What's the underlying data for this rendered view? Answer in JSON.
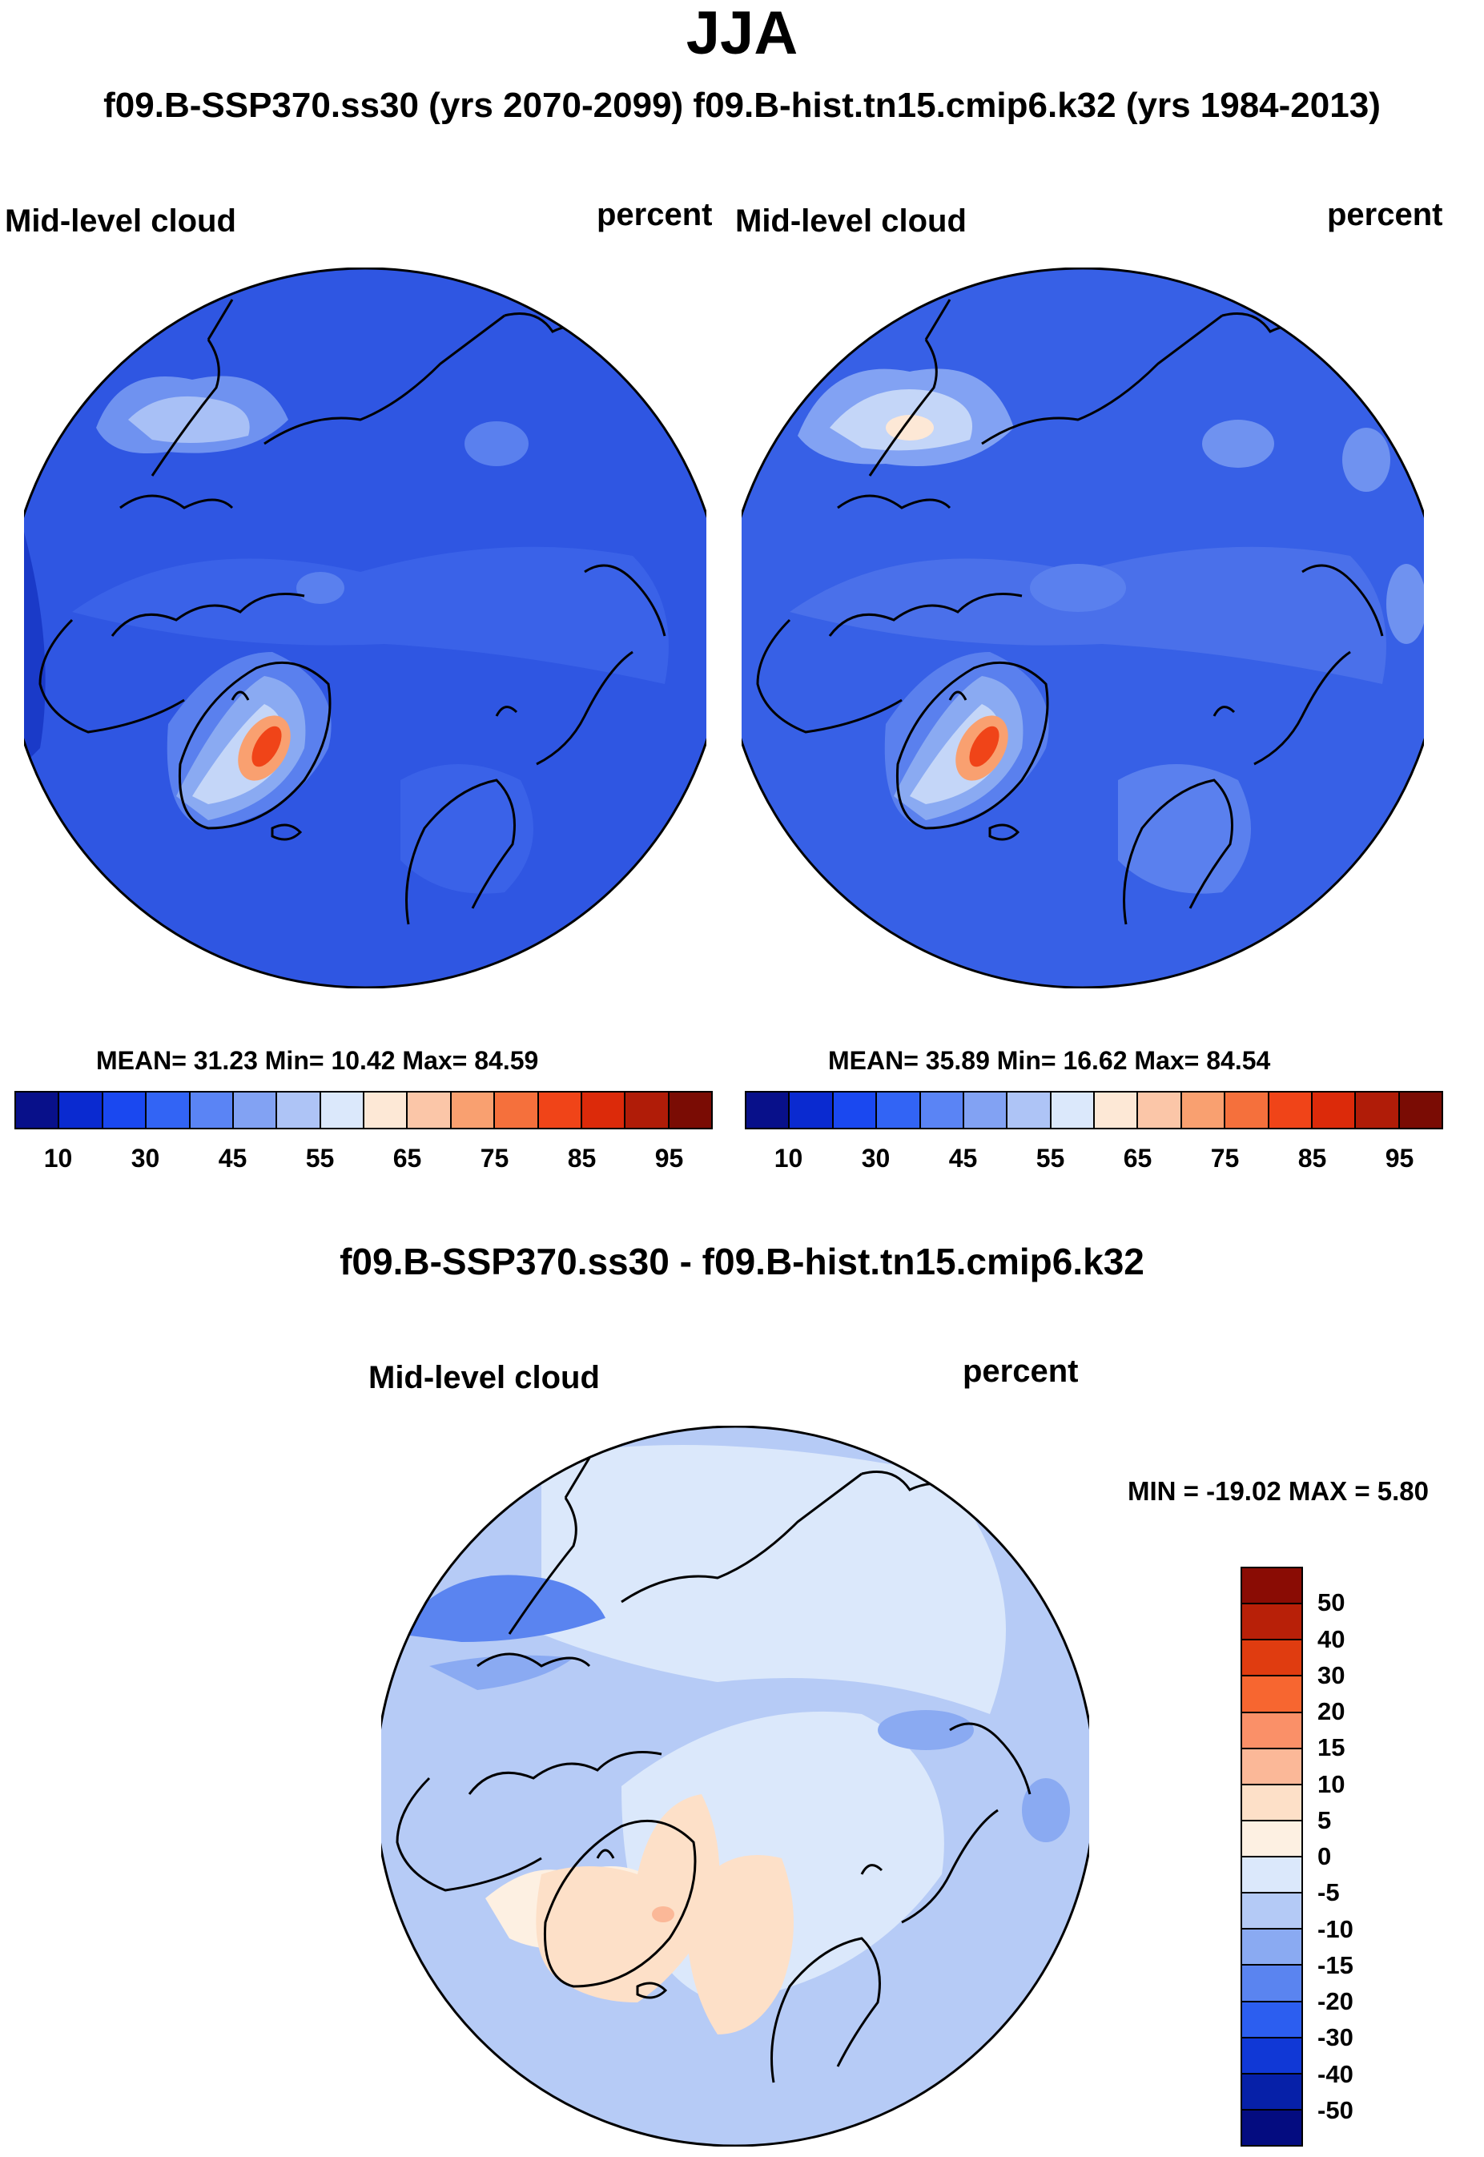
{
  "title": "JJA",
  "subtitle": "f09.B-SSP370.ss30 (yrs 2070-2099)  f09.B-hist.tn15.cmip6.k32 (yrs 1984-2013)",
  "panels": [
    {
      "label": "Mid-level cloud",
      "units": "percent",
      "stats": "MEAN=  31.23  Min=  10.42  Max=  84.59",
      "ticks": [
        "10",
        "30",
        "45",
        "55",
        "65",
        "75",
        "85",
        "95"
      ]
    },
    {
      "label": "Mid-level cloud",
      "units": "percent",
      "stats": "MEAN=  35.89  Min=  16.62  Max=  84.54",
      "ticks": [
        "10",
        "30",
        "45",
        "55",
        "65",
        "75",
        "85",
        "95"
      ]
    }
  ],
  "diff": {
    "title": "f09.B-SSP370.ss30 - f09.B-hist.tn15.cmip6.k32",
    "label": "Mid-level cloud",
    "units": "percent",
    "minmax": "MIN = -19.02 MAX =   5.80",
    "ticks": [
      "50",
      "40",
      "30",
      "20",
      "15",
      "10",
      "5",
      "0",
      "-5",
      "-10",
      "-15",
      "-20",
      "-30",
      "-40",
      "-50"
    ]
  },
  "colors": {
    "abs_scale": [
      "#08108a",
      "#0a2ad0",
      "#1a48f0",
      "#3264f5",
      "#5a84f5",
      "#82a2f3",
      "#aec4f6",
      "#dbe8fb",
      "#fde8d6",
      "#fbc6a8",
      "#f9a070",
      "#f5703c",
      "#f04418",
      "#dc2a0a",
      "#b01c08",
      "#7a0c04"
    ],
    "diff_scale": [
      "#8a0c04",
      "#b82008",
      "#e03c10",
      "#f76630",
      "#fa9068",
      "#fbb898",
      "#fde0c8",
      "#fdf0e2",
      "#dbe8fb",
      "#b4caf6",
      "#8aaaf2",
      "#5a84f0",
      "#2c5ef0",
      "#1038d6",
      "#0620a8",
      "#040c80"
    ],
    "ocean_future": "#2f56e2",
    "ocean_hist": "#3760e6",
    "diff_ocean": "#b6cbf6"
  }
}
